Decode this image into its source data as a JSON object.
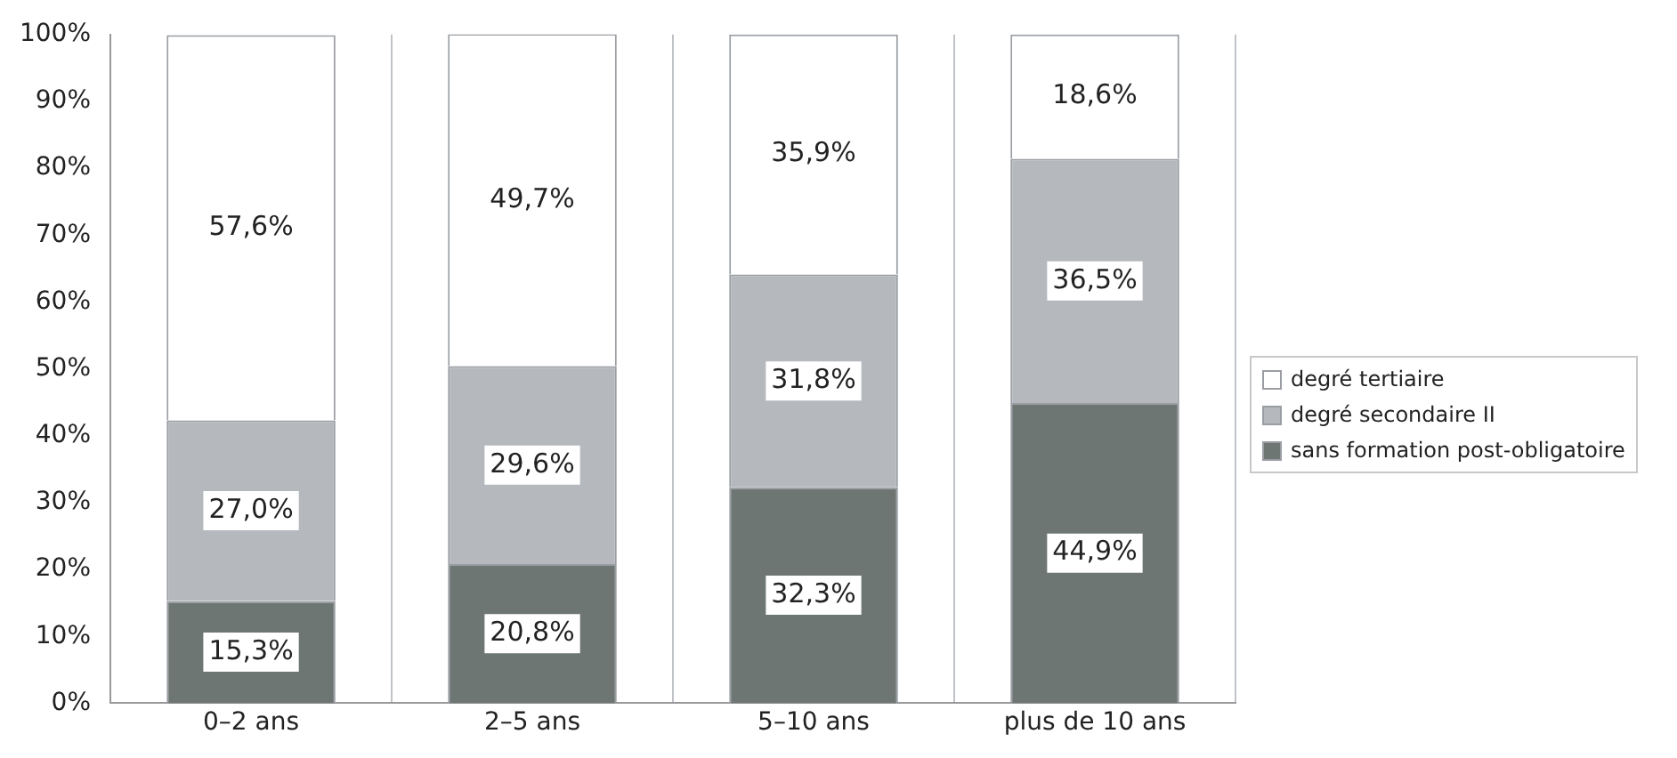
{
  "chart_data": {
    "type": "bar",
    "stacked": true,
    "categories": [
      "0–2 ans",
      "2–5 ans",
      "5–10 ans",
      "plus de 10 ans"
    ],
    "series": [
      {
        "name": "sans formation post-obligatoire",
        "color": "#6e7674",
        "values": [
          15.3,
          20.8,
          32.3,
          44.9
        ],
        "value_labels": [
          "15,3%",
          "20,8%",
          "32,3%",
          "44,9%"
        ]
      },
      {
        "name": "degré secondaire II",
        "color": "#b5b9be",
        "values": [
          27.0,
          29.6,
          31.8,
          36.5
        ],
        "value_labels": [
          "27,0%",
          "29,6%",
          "31,8%",
          "36,5%"
        ]
      },
      {
        "name": "degré tertiaire",
        "color": "#ffffff",
        "values": [
          57.6,
          49.7,
          35.9,
          18.6
        ],
        "value_labels": [
          "57,6%",
          "49,7%",
          "35,9%",
          "18,6%"
        ]
      }
    ],
    "ylim": [
      0,
      100
    ],
    "yticks": [
      {
        "value": 0,
        "label": "0%"
      },
      {
        "value": 10,
        "label": "10%"
      },
      {
        "value": 20,
        "label": "20%"
      },
      {
        "value": 30,
        "label": "30%"
      },
      {
        "value": 40,
        "label": "40%"
      },
      {
        "value": 50,
        "label": "50%"
      },
      {
        "value": 60,
        "label": "60%"
      },
      {
        "value": 70,
        "label": "70%"
      },
      {
        "value": 80,
        "label": "80%"
      },
      {
        "value": 90,
        "label": "90%"
      },
      {
        "value": 100,
        "label": "100%"
      }
    ],
    "grid": "x",
    "legend": "right"
  }
}
